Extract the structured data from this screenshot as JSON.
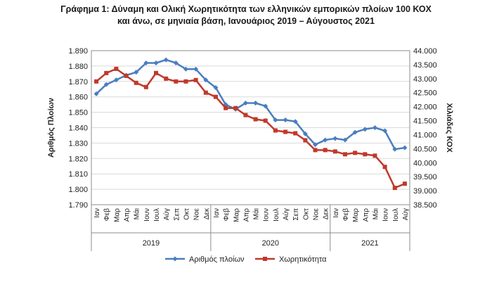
{
  "title_line1": "Γράφημα 1: Δύναμη και Ολική Χωρητικότητα των ελληνικών εμπορικών πλοίων 100 ΚΟΧ",
  "title_line2": "και άνω, σε μηνιαία βάση, Ιανουάριος 2019 – Αύγουστος 2021",
  "colors": {
    "ships": "#4a7ebf",
    "capacity": "#c0392b",
    "grid": "#d9d9d9",
    "axis": "#8c8c8c"
  },
  "chart_data": {
    "type": "line",
    "title": "Γράφημα 1: Δύναμη και Ολική Χωρητικότητα των ελληνικών εμπορικών πλοίων 100 ΚΟΧ και άνω, σε μηνιαία βάση, Ιανουάριος 2019 – Αύγουστος 2021",
    "ylabel": "Αριθμός Πλοίων",
    "y2label": "Χιλιάδες ΚΟΧ",
    "ylim": [
      1790,
      1890
    ],
    "y2lim": [
      38500,
      44000
    ],
    "yticks": [
      "1.790",
      "1.800",
      "1.810",
      "1.820",
      "1.830",
      "1.840",
      "1.850",
      "1.860",
      "1.870",
      "1.880",
      "1.890"
    ],
    "y2ticks": [
      "38.500",
      "39.000",
      "39.500",
      "40.000",
      "40.500",
      "41.000",
      "41.500",
      "42.000",
      "42.500",
      "43.000",
      "43.500",
      "44.000"
    ],
    "grid": true,
    "legend_position": "bottom",
    "categories": [
      "Ιαν",
      "Φεβ",
      "Μαρ",
      "Απρ",
      "Μάι",
      "Ιουν",
      "Ιουλ",
      "Αύγ",
      "Σεπ",
      "Οκτ",
      "Νοε",
      "Δεκ",
      "Ιαν",
      "Φεβ",
      "Μαρ",
      "Απρ",
      "Μάι",
      "Ιουν",
      "Ιουλ",
      "Αύγ",
      "Σεπ",
      "Οκτ",
      "Νοε",
      "Δεκ",
      "Ιαν",
      "Φεβ",
      "Μαρ",
      "Απρ",
      "Μάι",
      "Ιουν",
      "Ιουλ",
      "Αύγ"
    ],
    "years": [
      {
        "label": "2019",
        "count": 12
      },
      {
        "label": "2020",
        "count": 12
      },
      {
        "label": "2021",
        "count": 8
      }
    ],
    "series": [
      {
        "name": "Αριθμός πλοίων",
        "axis": "left",
        "values": [
          1862,
          1868,
          1871,
          1874,
          1876,
          1882,
          1882,
          1884,
          1882,
          1878,
          1878,
          1871,
          1866,
          1855,
          1852,
          1856,
          1856,
          1854,
          1845,
          1845,
          1844,
          1836,
          1829,
          1832,
          1833,
          1832,
          1837,
          1839,
          1840,
          1838,
          1826,
          1827
        ]
      },
      {
        "name": "Χωρητικότητα",
        "axis": "right",
        "values": [
          42900,
          43200,
          43350,
          43100,
          42850,
          42700,
          43200,
          43000,
          42900,
          42900,
          42950,
          42500,
          42350,
          41950,
          41950,
          41700,
          41550,
          41500,
          41150,
          41100,
          41050,
          40800,
          40450,
          40450,
          40400,
          40300,
          40350,
          40300,
          40250,
          39850,
          39100,
          39250
        ]
      }
    ]
  }
}
